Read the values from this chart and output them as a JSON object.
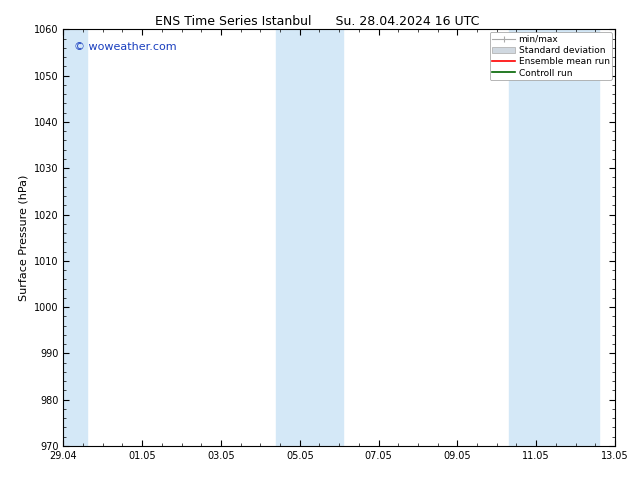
{
  "title_left": "ENS Time Series Istanbul",
  "title_right": "Su. 28.04.2024 16 UTC",
  "ylabel": "Surface Pressure (hPa)",
  "ylim": [
    970,
    1060
  ],
  "yticks": [
    970,
    980,
    990,
    1000,
    1010,
    1020,
    1030,
    1040,
    1050,
    1060
  ],
  "xlim": [
    0,
    14
  ],
  "xtick_labels": [
    "29.04",
    "01.05",
    "03.05",
    "05.05",
    "07.05",
    "09.05",
    "11.05",
    "13.05"
  ],
  "xtick_positions": [
    0,
    2,
    4,
    6,
    8,
    10,
    12,
    14
  ],
  "shaded_bands": [
    {
      "start": -0.05,
      "end": 0.6
    },
    {
      "start": 5.4,
      "end": 7.1
    },
    {
      "start": 11.3,
      "end": 13.6
    }
  ],
  "background_color": "#ffffff",
  "band_color": "#d4e8f7",
  "watermark_text": "© woweather.com",
  "watermark_color": "#1a3fbf",
  "legend_entries": [
    "min/max",
    "Standard deviation",
    "Ensemble mean run",
    "Controll run"
  ],
  "title_fontsize": 9,
  "axis_label_fontsize": 8,
  "tick_fontsize": 7,
  "watermark_fontsize": 8,
  "legend_fontsize": 6.5
}
